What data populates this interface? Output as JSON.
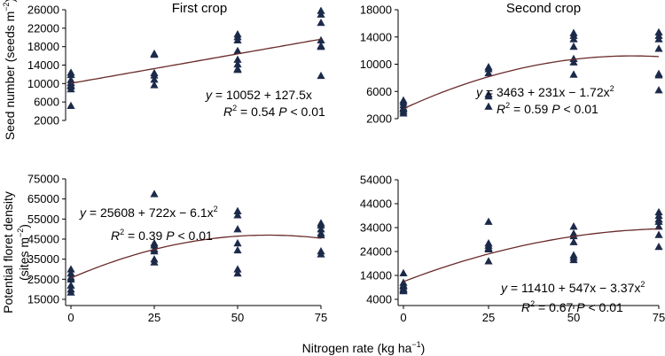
{
  "chart_data": [
    {
      "id": "first_seed",
      "type": "scatter",
      "title": "First crop",
      "ylim": [
        2000,
        26000
      ],
      "yticks": [
        2000,
        6000,
        10000,
        14000,
        18000,
        22000,
        26000
      ],
      "xlim": [
        0,
        75
      ],
      "xticks": [
        0,
        25,
        50,
        75
      ],
      "x": [
        0,
        0,
        0,
        0,
        0,
        0,
        0,
        0,
        25,
        25,
        25,
        25,
        25,
        25,
        50,
        50,
        50,
        50,
        50,
        50,
        50,
        50,
        75,
        75,
        75,
        75,
        75,
        75,
        75
      ],
      "y": [
        12400,
        11900,
        10800,
        10200,
        9700,
        9400,
        8800,
        5200,
        16500,
        16300,
        12300,
        11800,
        10900,
        9700,
        20700,
        20100,
        19400,
        17100,
        15200,
        14200,
        13200,
        13000,
        25800,
        25000,
        23200,
        19400,
        18200,
        18000,
        11700
      ],
      "fit": {
        "type": "poly",
        "coef": [
          10052,
          127.5,
          0
        ]
      },
      "eq_line1": {
        "yvar": "y",
        "rhs": " = 10052 + 127.5x",
        "sup": ""
      },
      "eq_line2": {
        "r2": "R",
        "r2_sup": "2",
        "r2_val": " = 0.54 ",
        "p": "P",
        "p_val": " < 0.01"
      }
    },
    {
      "id": "second_seed",
      "type": "scatter",
      "title": "Second crop",
      "ylim": [
        2000,
        18000
      ],
      "yticks": [
        2000,
        6000,
        10000,
        14000,
        18000
      ],
      "xlim": [
        0,
        75
      ],
      "xticks": [
        0,
        25,
        50,
        75
      ],
      "x": [
        0,
        0,
        0,
        0,
        0,
        0,
        0,
        25,
        25,
        25,
        25,
        25,
        25,
        50,
        50,
        50,
        50,
        50,
        50,
        50,
        75,
        75,
        75,
        75,
        75,
        75,
        75
      ],
      "y": [
        4700,
        4400,
        4000,
        3600,
        3400,
        3100,
        2800,
        9600,
        9300,
        8700,
        5600,
        5300,
        3800,
        14600,
        14200,
        13700,
        12600,
        10800,
        10300,
        8500,
        14700,
        14200,
        13700,
        12300,
        8600,
        8400,
        6200
      ],
      "fit": {
        "type": "poly",
        "coef": [
          3463,
          231,
          -1.72
        ]
      },
      "eq_line1": {
        "yvar": "y",
        "rhs": " = 3463 + 231x − 1.72x",
        "sup": "2"
      },
      "eq_line2": {
        "r2": "R",
        "r2_sup": "2",
        "r2_val": " = 0.59 ",
        "p": "P",
        "p_val": " < 0.01"
      }
    },
    {
      "id": "first_floret",
      "type": "scatter",
      "ylim": [
        15000,
        75000
      ],
      "yticks": [
        15000,
        25000,
        35000,
        45000,
        55000,
        65000,
        75000
      ],
      "xlim": [
        0,
        75
      ],
      "xticks": [
        0,
        25,
        50,
        75
      ],
      "x": [
        0,
        0,
        0,
        0,
        0,
        0,
        0,
        25,
        25,
        25,
        25,
        25,
        25,
        25,
        50,
        50,
        50,
        50,
        50,
        50,
        50,
        75,
        75,
        75,
        75,
        75,
        75,
        75
      ],
      "y": [
        30000,
        28000,
        26000,
        25000,
        22000,
        20000,
        18500,
        67500,
        43000,
        42000,
        40000,
        39000,
        35000,
        33500,
        59000,
        57000,
        50000,
        43000,
        39500,
        30000,
        28000,
        53000,
        52000,
        50000,
        48000,
        47000,
        39000,
        37500
      ],
      "fit": {
        "type": "poly",
        "coef": [
          25608,
          722,
          -6.1
        ]
      },
      "eq_line1": {
        "yvar": "y",
        "rhs": " = 25608 + 722x − 6.1x",
        "sup": "2"
      },
      "eq_line2": {
        "r2": "R",
        "r2_sup": "2",
        "r2_val": " = 0.39 ",
        "p": "P",
        "p_val": " < 0.01"
      }
    },
    {
      "id": "second_floret",
      "type": "scatter",
      "ylim": [
        4000,
        54000
      ],
      "yticks": [
        4000,
        14000,
        24000,
        34000,
        44000,
        54000
      ],
      "xlim": [
        0,
        75
      ],
      "xticks": [
        0,
        25,
        50,
        75
      ],
      "x": [
        0,
        0,
        0,
        0,
        0,
        0,
        0,
        25,
        25,
        25,
        25,
        25,
        25,
        50,
        50,
        50,
        50,
        50,
        50,
        50,
        75,
        75,
        75,
        75,
        75,
        75,
        75
      ],
      "y": [
        15000,
        11000,
        10000,
        9500,
        8500,
        8000,
        7500,
        36500,
        27500,
        26500,
        25500,
        25000,
        20000,
        34500,
        31500,
        30500,
        28000,
        22500,
        21500,
        20500,
        40500,
        39000,
        37500,
        36500,
        34500,
        31000,
        26000
      ],
      "fit": {
        "type": "poly",
        "coef": [
          11410,
          547,
          -3.37
        ]
      },
      "eq_line1": {
        "yvar": "y",
        "rhs": " = 11410 + 547x − 3.37x",
        "sup": "2"
      },
      "eq_line2": {
        "r2": "R",
        "r2_sup": "2",
        "r2_val": " = 0.67 ",
        "p": "P",
        "p_val": " < 0.01"
      }
    }
  ],
  "labels": {
    "y_top": {
      "main": "Seed number (seeds m",
      "sup": "−2",
      "close": ")"
    },
    "y_bottom_line1": "Potential floret density",
    "y_bottom_line2": {
      "main": "(sites m",
      "sup": "−2",
      "close": ")"
    },
    "x": {
      "main": "Nitrogen rate (kg ha",
      "sup": "−1",
      "close": ")"
    }
  },
  "colors": {
    "marker": "#1c2a4a",
    "fit_line": "#6a2a2a",
    "axis": "#000000"
  }
}
